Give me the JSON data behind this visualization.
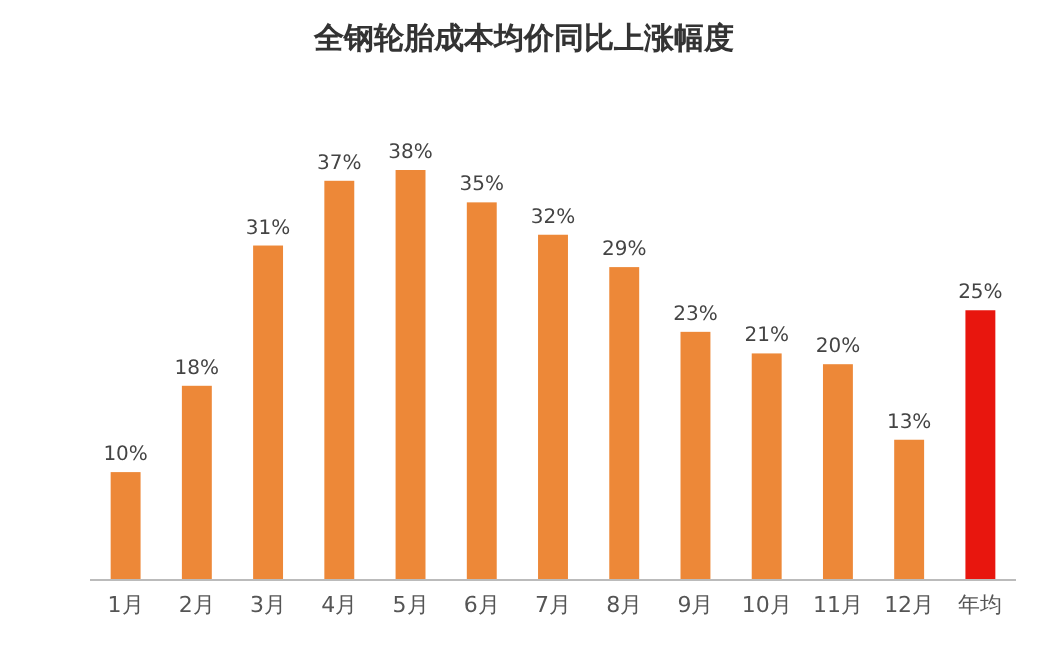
{
  "chart_data": {
    "type": "bar",
    "title": "全钢轮胎成本均价同比上涨幅度",
    "categories": [
      "1月",
      "2月",
      "3月",
      "4月",
      "5月",
      "6月",
      "7月",
      "8月",
      "9月",
      "10月",
      "11月",
      "12月",
      "年均"
    ],
    "values": [
      10,
      18,
      31,
      37,
      38,
      35,
      32,
      29,
      23,
      21,
      20,
      13,
      25
    ],
    "value_labels": [
      "10%",
      "18%",
      "31%",
      "37%",
      "38%",
      "35%",
      "32%",
      "29%",
      "23%",
      "21%",
      "20%",
      "13%",
      "25%"
    ],
    "colors": [
      "#ed8838",
      "#ed8838",
      "#ed8838",
      "#ed8838",
      "#ed8838",
      "#ed8838",
      "#ed8838",
      "#ed8838",
      "#ed8838",
      "#ed8838",
      "#ed8838",
      "#ed8838",
      "#e8160e"
    ],
    "grid": false
  }
}
